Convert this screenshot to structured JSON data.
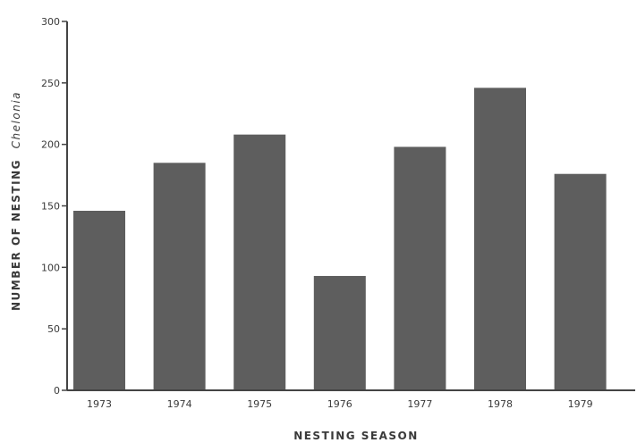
{
  "chart_data": {
    "type": "bar",
    "categories": [
      "1973",
      "1974",
      "1975",
      "1976",
      "1977",
      "1978",
      "1979"
    ],
    "values": [
      146,
      185,
      208,
      93,
      198,
      246,
      176
    ],
    "xlabel": "NESTING SEASON",
    "ylabel": "NUMBER OF NESTING",
    "ylabel_species": "Chelonia",
    "ylim": [
      0,
      300
    ],
    "yticks": [
      0,
      50,
      100,
      150,
      200,
      250,
      300
    ],
    "grid": false,
    "bar_color": "#5e5e5e",
    "axis_color": "#444444"
  }
}
